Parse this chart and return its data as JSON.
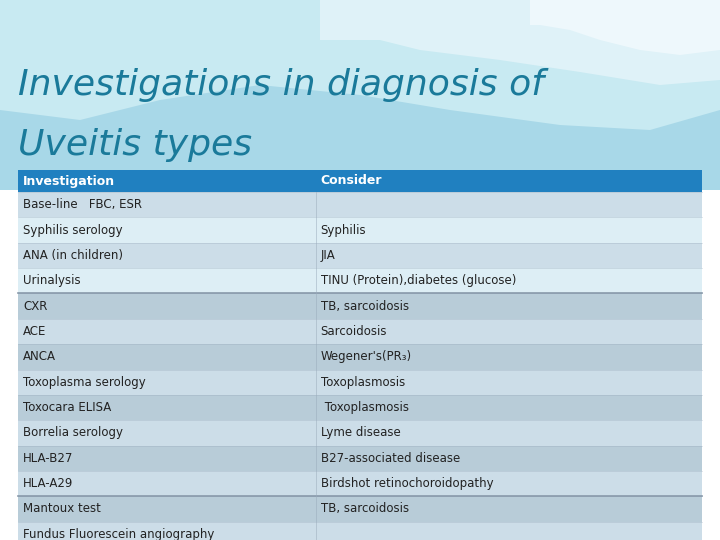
{
  "title_line1": "Investigations in diagnosis of",
  "title_line2": "Uveitis types",
  "title_color": "#1a7a9a",
  "header": [
    "Investigation",
    "Consider"
  ],
  "header_bg": "#2080c0",
  "header_text_color": "#ffffff",
  "rows": [
    [
      "Base-line   FBC, ESR",
      ""
    ],
    [
      "Syphilis serology",
      "Syphilis"
    ],
    [
      "ANA (in children)",
      "JIA"
    ],
    [
      "Urinalysis",
      "TINU (Protein),diabetes (glucose)"
    ],
    [
      "CXR",
      "TB, sarcoidosis"
    ],
    [
      "ACE",
      "Sarcoidosis"
    ],
    [
      "ANCA",
      "Wegener's(PR₃)"
    ],
    [
      "Toxoplasma serology",
      "Toxoplasmosis"
    ],
    [
      "Toxocara ELISA",
      " Toxoplasmosis"
    ],
    [
      "Borrelia serology",
      "Lyme disease"
    ],
    [
      "HLA-B27",
      "B27-associated disease"
    ],
    [
      "HLA-A29",
      "Birdshot retinochoroidopathy"
    ],
    [
      "Mantoux test",
      "TB, sarcoidosis"
    ],
    [
      "Fundus Fluorescein angiography",
      ""
    ]
  ],
  "row_colors": [
    "#ccdde8",
    "#ddeef5",
    "#ccdde8",
    "#ddeef5",
    "#b8ccd8",
    "#ccdde8",
    "#b8ccd8",
    "#ccdde8",
    "#b8ccd8",
    "#ccdde8",
    "#b8ccd8",
    "#ccdde8",
    "#b8ccd8",
    "#ccdde8"
  ],
  "bg_color": "#a8d8e8",
  "wave_color1": "#c8eaf2",
  "wave_color2": "#dff2f8",
  "wave_color3": "#eef8fc",
  "col_split": 0.435,
  "font_size_title": 26,
  "font_size_header": 9,
  "font_size_body": 8.5,
  "group_dividers": [
    3,
    11
  ]
}
